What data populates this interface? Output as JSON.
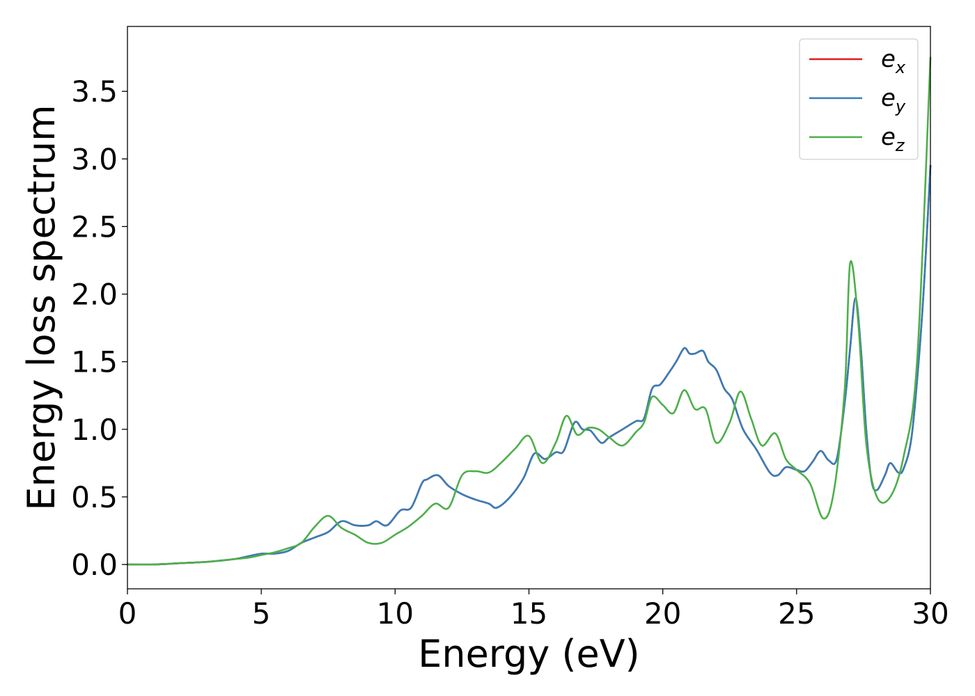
{
  "chart_data": {
    "type": "line",
    "title": "",
    "xlabel": "Energy (eV)",
    "ylabel": "Energy loss spectrum",
    "xlim": [
      0,
      30
    ],
    "ylim": [
      -0.18,
      3.98
    ],
    "xticks": [
      0,
      5,
      10,
      15,
      20,
      25,
      30
    ],
    "xtick_labels": [
      "0",
      "5",
      "10",
      "15",
      "20",
      "25",
      "30"
    ],
    "yticks": [
      0.0,
      0.5,
      1.0,
      1.5,
      2.0,
      2.5,
      3.0,
      3.5
    ],
    "ytick_labels": [
      "0.0",
      "0.5",
      "1.0",
      "1.5",
      "2.0",
      "2.5",
      "3.0",
      "3.5"
    ],
    "grid": false,
    "legend_position": "top-right",
    "series": [
      {
        "name": "e",
        "sub": "x",
        "color": "#e41a1c",
        "x": [
          0,
          1,
          2,
          3,
          4,
          4.5,
          5,
          5.5,
          6,
          6.5,
          7,
          7.5,
          8,
          8.5,
          9,
          9.3,
          9.7,
          10.2,
          10.6,
          11,
          11.2,
          11.6,
          12,
          12.5,
          13,
          13.5,
          13.8,
          14.3,
          14.8,
          15.2,
          15.6,
          16,
          16.3,
          16.7,
          17,
          17.3,
          17.7,
          18,
          18.5,
          19,
          19.3,
          19.6,
          19.9,
          20.2,
          20.5,
          20.8,
          21,
          21.2,
          21.5,
          21.7,
          22,
          22.3,
          22.6,
          23,
          23.5,
          24,
          24.3,
          24.6,
          25,
          25.3,
          25.6,
          25.9,
          26.2,
          26.5,
          26.8,
          27,
          27.2,
          27.4,
          27.6,
          27.8,
          28,
          28.3,
          28.5,
          28.8,
          29,
          29.3,
          29.6,
          29.8,
          30
        ],
        "y": [
          0.0,
          0.0,
          0.01,
          0.02,
          0.04,
          0.06,
          0.08,
          0.08,
          0.1,
          0.16,
          0.2,
          0.24,
          0.32,
          0.29,
          0.29,
          0.32,
          0.29,
          0.4,
          0.42,
          0.6,
          0.63,
          0.66,
          0.58,
          0.52,
          0.48,
          0.45,
          0.42,
          0.5,
          0.64,
          0.82,
          0.78,
          0.83,
          0.84,
          1.05,
          1.0,
          0.99,
          0.9,
          0.94,
          1.0,
          1.06,
          1.08,
          1.3,
          1.33,
          1.41,
          1.5,
          1.6,
          1.56,
          1.56,
          1.58,
          1.5,
          1.44,
          1.3,
          1.22,
          1.0,
          0.85,
          0.68,
          0.66,
          0.72,
          0.7,
          0.69,
          0.76,
          0.84,
          0.77,
          0.78,
          1.2,
          1.6,
          1.97,
          1.6,
          1.0,
          0.62,
          0.55,
          0.66,
          0.75,
          0.68,
          0.71,
          0.95,
          1.6,
          2.2,
          2.95
        ]
      },
      {
        "name": "e",
        "sub": "y",
        "color": "#377eb8",
        "x": [
          0,
          1,
          2,
          3,
          4,
          4.5,
          5,
          5.5,
          6,
          6.5,
          7,
          7.5,
          8,
          8.5,
          9,
          9.3,
          9.7,
          10.2,
          10.6,
          11,
          11.2,
          11.6,
          12,
          12.5,
          13,
          13.5,
          13.8,
          14.3,
          14.8,
          15.2,
          15.6,
          16,
          16.3,
          16.7,
          17,
          17.3,
          17.7,
          18,
          18.5,
          19,
          19.3,
          19.6,
          19.9,
          20.2,
          20.5,
          20.8,
          21,
          21.2,
          21.5,
          21.7,
          22,
          22.3,
          22.6,
          23,
          23.5,
          24,
          24.3,
          24.6,
          25,
          25.3,
          25.6,
          25.9,
          26.2,
          26.5,
          26.8,
          27,
          27.2,
          27.4,
          27.6,
          27.8,
          28,
          28.3,
          28.5,
          28.8,
          29,
          29.3,
          29.6,
          29.8,
          30
        ],
        "y": [
          0.0,
          0.0,
          0.01,
          0.02,
          0.04,
          0.06,
          0.08,
          0.08,
          0.1,
          0.16,
          0.2,
          0.24,
          0.32,
          0.29,
          0.29,
          0.32,
          0.29,
          0.4,
          0.42,
          0.6,
          0.63,
          0.66,
          0.58,
          0.52,
          0.48,
          0.45,
          0.42,
          0.5,
          0.64,
          0.82,
          0.78,
          0.83,
          0.84,
          1.05,
          1.0,
          0.99,
          0.9,
          0.94,
          1.0,
          1.06,
          1.08,
          1.3,
          1.33,
          1.41,
          1.5,
          1.6,
          1.56,
          1.56,
          1.58,
          1.5,
          1.44,
          1.3,
          1.22,
          1.0,
          0.85,
          0.68,
          0.66,
          0.72,
          0.7,
          0.69,
          0.76,
          0.84,
          0.77,
          0.78,
          1.2,
          1.6,
          1.97,
          1.6,
          1.0,
          0.62,
          0.55,
          0.66,
          0.75,
          0.68,
          0.71,
          0.95,
          1.6,
          2.2,
          2.95
        ]
      },
      {
        "name": "e",
        "sub": "z",
        "color": "#4daf4a",
        "x": [
          0,
          1,
          2,
          3,
          3.5,
          4,
          4.5,
          5,
          5.5,
          6,
          6.5,
          7,
          7.5,
          8,
          8.5,
          9,
          9.5,
          10,
          10.5,
          11,
          11.5,
          12,
          12.5,
          13,
          13.5,
          14,
          14.5,
          15,
          15.5,
          16,
          16.4,
          16.8,
          17.2,
          17.6,
          18,
          18.5,
          19,
          19.3,
          19.6,
          20,
          20.4,
          20.8,
          21.2,
          21.6,
          22,
          22.5,
          22.9,
          23.3,
          23.7,
          24.2,
          24.6,
          25,
          25.5,
          26,
          26.4,
          26.8,
          27,
          27.3,
          27.6,
          28,
          28.5,
          29,
          29.5,
          30
        ],
        "y": [
          0.0,
          0.0,
          0.01,
          0.02,
          0.03,
          0.04,
          0.05,
          0.07,
          0.09,
          0.12,
          0.16,
          0.28,
          0.36,
          0.27,
          0.22,
          0.16,
          0.16,
          0.22,
          0.28,
          0.36,
          0.45,
          0.42,
          0.66,
          0.69,
          0.68,
          0.76,
          0.86,
          0.95,
          0.75,
          0.9,
          1.1,
          0.96,
          1.01,
          1.0,
          0.94,
          0.88,
          0.98,
          1.05,
          1.24,
          1.18,
          1.12,
          1.29,
          1.15,
          1.15,
          0.9,
          1.05,
          1.28,
          1.08,
          0.88,
          0.97,
          0.78,
          0.7,
          0.6,
          0.34,
          0.55,
          1.3,
          2.23,
          1.8,
          0.9,
          0.5,
          0.5,
          0.8,
          1.5,
          3.75
        ]
      }
    ]
  }
}
